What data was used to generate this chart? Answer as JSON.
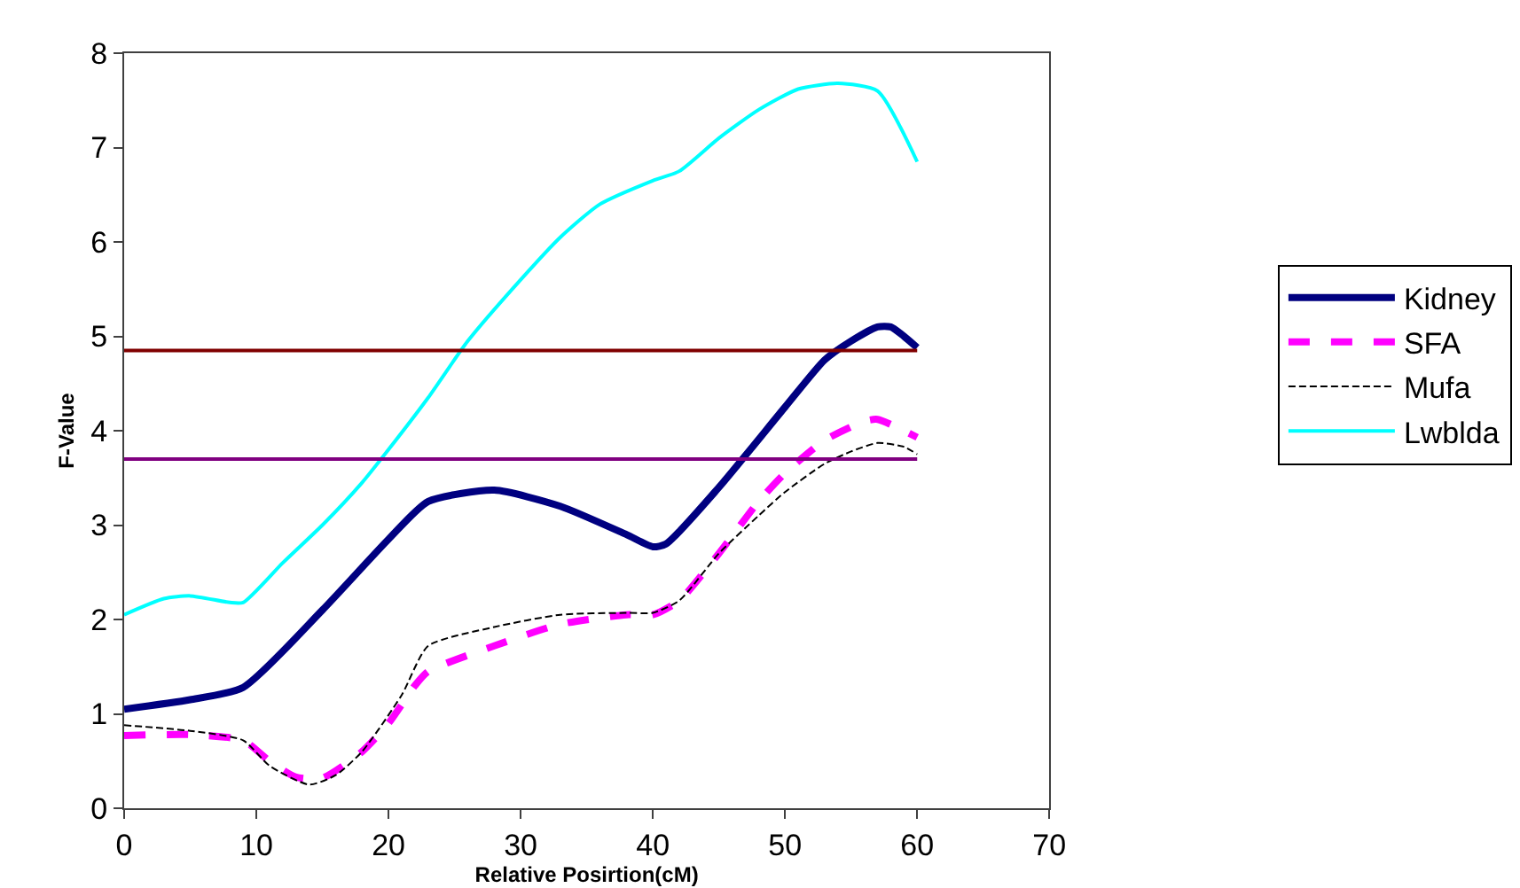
{
  "chart_data": {
    "type": "line",
    "xlabel": "Relative Posirtion(cM)",
    "ylabel": "F-Value",
    "xlim": [
      0,
      70
    ],
    "xticks": [
      0,
      10,
      20,
      30,
      40,
      50,
      60,
      70
    ],
    "ylim": [
      0,
      8
    ],
    "yticks": [
      0,
      1,
      2,
      3,
      4,
      5,
      6,
      7,
      8
    ],
    "legend": "right",
    "marker": "none",
    "series": [
      {
        "name": "Kidney",
        "color": "#000080",
        "line_style": "solid",
        "x": [
          0,
          5,
          9,
          15,
          20,
          23,
          28,
          33,
          38,
          40,
          41,
          45,
          50,
          53,
          55,
          57,
          58,
          59,
          60
        ],
        "values": [
          1.05,
          1.15,
          1.28,
          2.1,
          2.85,
          3.25,
          3.37,
          3.2,
          2.9,
          2.77,
          2.8,
          3.4,
          4.25,
          4.75,
          4.95,
          5.1,
          5.1,
          5.0,
          4.88
        ]
      },
      {
        "name": "SFA",
        "color": "#ff00ff",
        "line_style": "dashed",
        "x": [
          0,
          5,
          9,
          11,
          13,
          15,
          18,
          20,
          22,
          23,
          28,
          33,
          38,
          40,
          42,
          45,
          48,
          50,
          53,
          56,
          57,
          60
        ],
        "values": [
          0.77,
          0.78,
          0.72,
          0.5,
          0.33,
          0.32,
          0.6,
          0.9,
          1.3,
          1.45,
          1.72,
          1.95,
          2.05,
          2.05,
          2.2,
          2.7,
          3.25,
          3.55,
          3.9,
          4.1,
          4.12,
          3.93
        ]
      },
      {
        "name": "Mufa",
        "color": "#000000",
        "line_style": "dashed",
        "x": [
          0,
          5,
          9,
          11,
          14,
          16,
          18,
          21,
          23,
          28,
          33,
          38,
          40,
          42,
          45,
          48,
          50,
          53,
          55,
          57,
          59,
          60
        ],
        "values": [
          0.88,
          0.82,
          0.72,
          0.45,
          0.25,
          0.35,
          0.6,
          1.2,
          1.72,
          1.92,
          2.05,
          2.07,
          2.07,
          2.2,
          2.7,
          3.1,
          3.35,
          3.65,
          3.78,
          3.87,
          3.83,
          3.75
        ]
      },
      {
        "name": "Lwblda",
        "color": "#00ffff",
        "line_style": "solid",
        "x": [
          0,
          3,
          5,
          8,
          9,
          12,
          15,
          18,
          20,
          23,
          26,
          30,
          33,
          36,
          40,
          42,
          45,
          48,
          51,
          54,
          57,
          60
        ],
        "values": [
          2.05,
          2.22,
          2.25,
          2.18,
          2.18,
          2.6,
          3.0,
          3.45,
          3.8,
          4.35,
          4.95,
          5.6,
          6.05,
          6.4,
          6.65,
          6.75,
          7.1,
          7.4,
          7.62,
          7.68,
          7.6,
          6.85
        ]
      }
    ],
    "ref_lines": [
      {
        "axis": "y",
        "value": 4.85,
        "color": "#800000"
      },
      {
        "axis": "y",
        "value": 3.7,
        "color": "#800080"
      }
    ]
  }
}
